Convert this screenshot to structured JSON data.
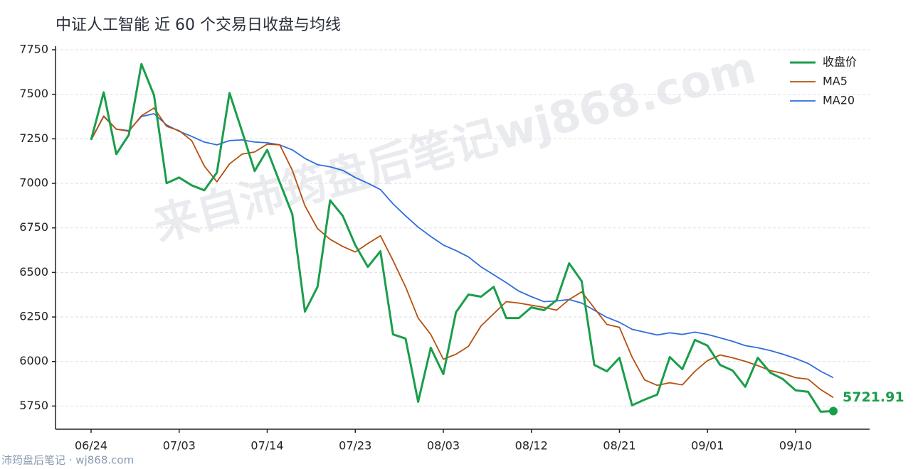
{
  "chart_data": {
    "type": "line",
    "title": "中证人工智能 近 60 个交易日收盘与均线",
    "watermark": "来自沛筠盘后笔记wj868.com",
    "source": "沛筠盘后笔记 · wj868.com",
    "categories": [
      "06/24",
      null,
      null,
      null,
      null,
      null,
      null,
      "07/03",
      null,
      null,
      null,
      null,
      null,
      null,
      "07/14",
      null,
      null,
      null,
      null,
      null,
      null,
      "07/23",
      null,
      null,
      null,
      null,
      null,
      null,
      "08/03",
      null,
      null,
      null,
      null,
      null,
      null,
      "08/12",
      null,
      null,
      null,
      null,
      null,
      null,
      "08/21",
      null,
      null,
      null,
      null,
      null,
      null,
      "09/01",
      null,
      null,
      null,
      null,
      null,
      null,
      "09/10",
      null,
      null,
      null
    ],
    "series": [
      {
        "name": "收盘价",
        "color": "#1a9e4a",
        "width": 3,
        "values": [
          7244,
          7511,
          7164,
          7272,
          7670,
          7495,
          7001,
          7033,
          6989,
          6961,
          7061,
          7507,
          7292,
          7069,
          7188,
          7005,
          6826,
          6280,
          6419,
          6905,
          6818,
          6654,
          6531,
          6619,
          6152,
          6129,
          5774,
          6077,
          5929,
          6276,
          6376,
          6364,
          6419,
          6244,
          6244,
          6304,
          6288,
          6344,
          6551,
          6451,
          5981,
          5945,
          6021,
          5754,
          5786,
          5814,
          6025,
          5957,
          6121,
          6089,
          5981,
          5949,
          5858,
          6021,
          5937,
          5901,
          5838,
          5830,
          5718,
          5721.91
        ]
      },
      {
        "name": "MA5",
        "color": "#b5500f",
        "width": 1.8,
        "values": [
          7244,
          7378,
          7304,
          7292,
          7379,
          7423,
          7320,
          7296,
          7240,
          7097,
          7009,
          7109,
          7164,
          7176,
          7220,
          7216,
          7073,
          6874,
          6746,
          6686,
          6646,
          6615,
          6662,
          6706,
          6567,
          6419,
          6244,
          6152,
          6013,
          6041,
          6085,
          6200,
          6268,
          6336,
          6328,
          6316,
          6304,
          6288,
          6348,
          6391,
          6300,
          6208,
          6192,
          6025,
          5897,
          5866,
          5881,
          5869,
          5945,
          6005,
          6037,
          6021,
          6001,
          5977,
          5949,
          5933,
          5909,
          5901,
          5842,
          5798
        ]
      },
      {
        "name": "MA20",
        "color": "#2f6ddb",
        "width": 1.8,
        "values": [
          7244,
          7375,
          7304,
          7296,
          7375,
          7391,
          7328,
          7292,
          7264,
          7232,
          7216,
          7240,
          7244,
          7232,
          7228,
          7216,
          7188,
          7140,
          7105,
          7093,
          7073,
          7033,
          7001,
          6965,
          6885,
          6818,
          6754,
          6702,
          6654,
          6623,
          6587,
          6531,
          6487,
          6443,
          6395,
          6364,
          6336,
          6340,
          6348,
          6328,
          6288,
          6248,
          6220,
          6181,
          6165,
          6149,
          6161,
          6152,
          6165,
          6152,
          6133,
          6113,
          6089,
          6077,
          6061,
          6041,
          6017,
          5989,
          5945,
          5909
        ]
      }
    ],
    "ylim": [
      5620,
      7770
    ],
    "yticks": [
      5750,
      6000,
      6250,
      6500,
      6750,
      7000,
      7250,
      7500,
      7750
    ],
    "grid": true,
    "legend": "upper right"
  }
}
